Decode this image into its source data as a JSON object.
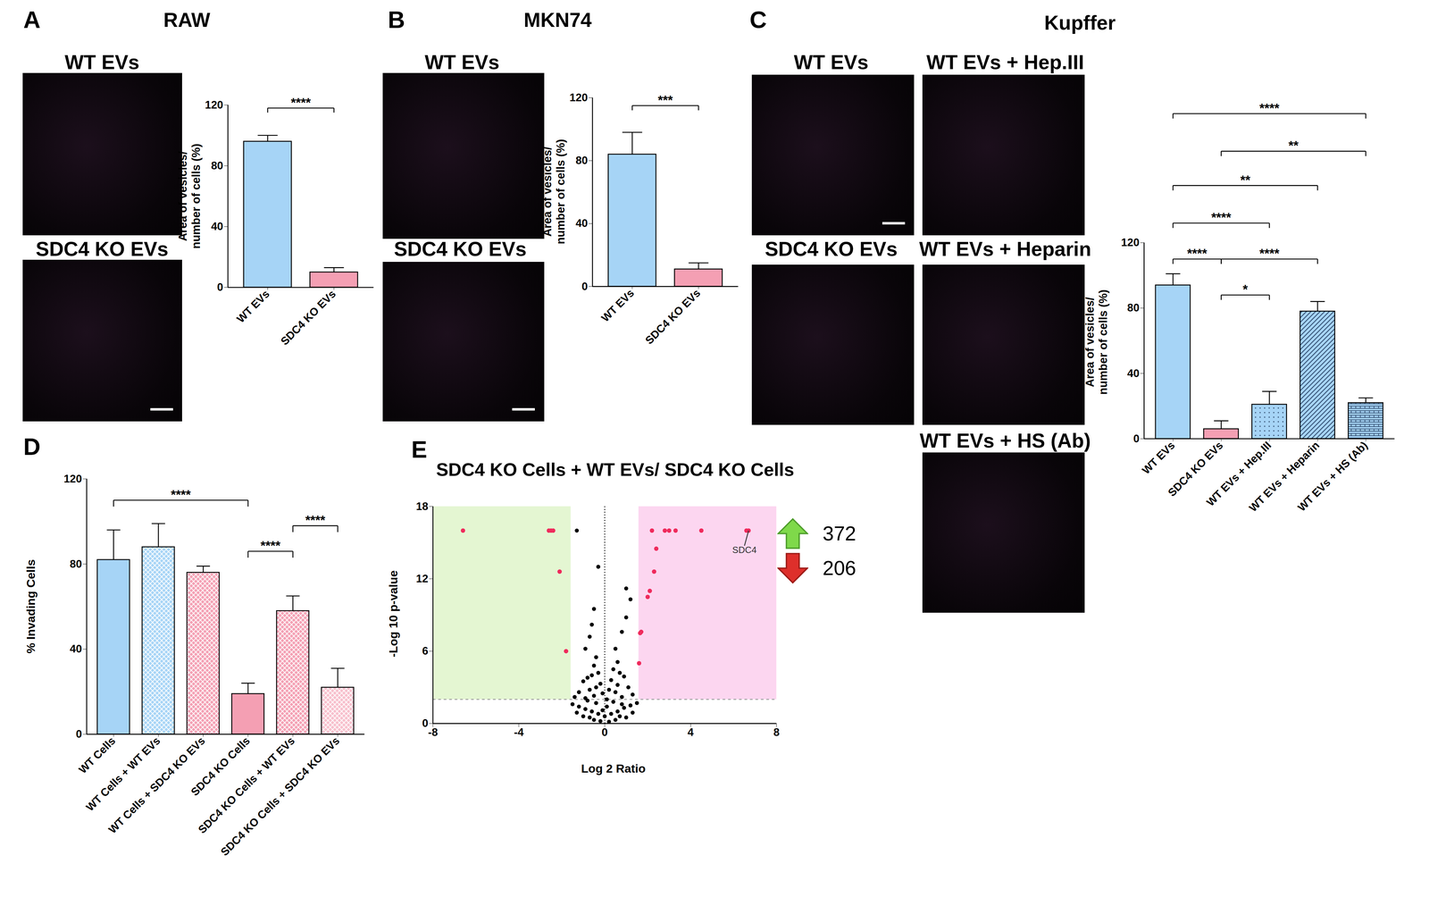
{
  "figure": {
    "panels": [
      {
        "label": "A",
        "title": "RAW",
        "images": [
          "WT EVs",
          "SDC4 KO EVs"
        ]
      },
      {
        "label": "B",
        "title": "MKN74",
        "images": [
          "WT EVs",
          "SDC4 KO EVs"
        ]
      },
      {
        "label": "C",
        "title": "Kupffer",
        "images": [
          "WT EVs",
          "WT EVs + Hep.III",
          "SDC4 KO EVs",
          "WT EVs + Heparin",
          "WT EVs + HS (Ab)"
        ]
      },
      {
        "label": "D"
      },
      {
        "label": "E"
      }
    ]
  },
  "chart_data": [
    {
      "type": "bar",
      "y_label": "Area of vesicles/ number of cells (%)",
      "categories": [
        "WT EVs",
        "SDC4 KO EVs"
      ],
      "values": [
        96,
        10
      ],
      "errors": [
        4,
        3
      ],
      "colors": [
        "#a6d4f6",
        "#f49fb3"
      ],
      "ylim": [
        0,
        120
      ],
      "yticks": [
        0,
        40,
        80,
        120
      ],
      "significance": [
        {
          "from": "WT EVs",
          "to": "SDC4 KO EVs",
          "label": "****",
          "y": 118
        }
      ]
    },
    {
      "type": "bar",
      "y_label": "Area of vesicles/ number of cells (%)",
      "categories": [
        "WT EVs",
        "SDC4 KO EVs"
      ],
      "values": [
        84,
        11
      ],
      "errors": [
        14,
        4
      ],
      "colors": [
        "#a6d4f6",
        "#f49fb3"
      ],
      "ylim": [
        0,
        120
      ],
      "yticks": [
        0,
        40,
        80,
        120
      ],
      "significance": [
        {
          "from": "WT EVs",
          "to": "SDC4 KO EVs",
          "label": "***",
          "y": 115
        }
      ]
    },
    {
      "type": "bar",
      "y_label": "Area of vesicles/ number of cells (%)",
      "categories": [
        "WT EVs",
        "SDC4 KO EVs",
        "WT EVs + Hep.III",
        "WT EVs + Heparin",
        "WT EVs + HS (Ab)"
      ],
      "values": [
        94,
        6,
        21,
        78,
        22
      ],
      "errors": [
        7,
        5,
        8,
        6,
        3
      ],
      "colors": [
        "#a6d4f6",
        "#f49fb3",
        "#a6d4f6",
        "#a6d4f6",
        "#a6d4f6"
      ],
      "ylim": [
        0,
        120
      ],
      "yticks": [
        0,
        40,
        80,
        120
      ],
      "significance": [
        {
          "from": "WT EVs",
          "to": "WT EVs + HS (Ab)",
          "label": "****",
          "y": 199
        },
        {
          "from": "SDC4 KO EVs",
          "to": "WT EVs + HS (Ab)",
          "label": "**",
          "y": 176
        },
        {
          "from": "WT EVs",
          "to": "WT EVs + Heparin",
          "label": "**",
          "y": 155
        },
        {
          "from": "WT EVs",
          "to": "WT EVs + Hep.III",
          "label": "****",
          "y": 132
        },
        {
          "from": "WT EVs",
          "to": "SDC4 KO EVs",
          "label": "****",
          "y": 110
        },
        {
          "from": "SDC4 KO EVs",
          "to": "WT EVs + Heparin",
          "label": "****",
          "y": 110
        },
        {
          "from": "SDC4 KO EVs",
          "to": "WT EVs + Hep.III",
          "label": "*",
          "y": 88
        }
      ]
    },
    {
      "type": "bar",
      "y_label": "% Invading Cells",
      "categories": [
        "WT Cells",
        "WT Cells + WT EVs",
        "WT Cells + SDC4 KO EVs",
        "SDC4 KO Cells",
        "SDC4 KO Cells + WT EVs",
        "SDC4 KO Cells + SDC4 KO EVs"
      ],
      "values": [
        82,
        88,
        76,
        19,
        58,
        22
      ],
      "errors": [
        14,
        11,
        3,
        5,
        7,
        9
      ],
      "colors": [
        "#a6d4f6",
        "#a6d4f6",
        "#f49fb3",
        "#f49fb3",
        "#f49fb3",
        "#f7bfcc"
      ],
      "ylim": [
        0,
        120
      ],
      "yticks": [
        0,
        40,
        80,
        120
      ],
      "significance": [
        {
          "from": "WT Cells",
          "to": "SDC4 KO Cells",
          "label": "****",
          "y": 110
        },
        {
          "from": "SDC4 KO Cells + WT EVs",
          "to": "SDC4 KO Cells + SDC4 KO EVs",
          "label": "****",
          "y": 98
        },
        {
          "from": "SDC4 KO Cells",
          "to": "SDC4 KO Cells + WT EVs",
          "label": "****",
          "y": 86
        }
      ]
    },
    {
      "type": "scatter",
      "title": "SDC4 KO Cells + WT EVs/ SDC4 KO Cells",
      "x_label": "Log 2 Ratio",
      "y_label": "-Log 10 p-value",
      "xlim": [
        -8,
        8
      ],
      "xticks": [
        -8,
        -4,
        0,
        4,
        8
      ],
      "ylim": [
        0,
        18
      ],
      "yticks": [
        0,
        6,
        12,
        18
      ],
      "thresholds": {
        "log2_ratio": [
          -1.58,
          1.58
        ],
        "neg_log10_p": 2,
        "center": 0
      },
      "significant": {
        "color": "#ef2b5c",
        "x": [
          -6.6,
          -2.6,
          -2.5,
          -2.4,
          -2.1,
          -1.8,
          1.6,
          1.65,
          1.7,
          2.0,
          2.1,
          2.3,
          2.4,
          2.2,
          2.8,
          3.0,
          3.3,
          4.5,
          6.6,
          6.7
        ],
        "y": [
          16,
          16,
          16,
          16,
          12.6,
          6,
          5,
          7.5,
          7.6,
          10.5,
          11,
          12.6,
          14.5,
          16,
          16,
          16,
          16,
          16,
          16,
          16
        ]
      },
      "other": {
        "color": "#000000",
        "x": [
          -1.3,
          -0.3,
          -0.5,
          -0.6,
          -0.7,
          -0.9,
          -0.4,
          -0.5,
          -0.3,
          -0.6,
          -0.8,
          -1.0,
          -0.2,
          -0.4,
          -0.7,
          -1.2,
          -0.1,
          -0.5,
          -0.9,
          -1.4,
          0.5,
          0.6,
          0.4,
          0.7,
          0.9,
          0.3,
          1.0,
          1.2,
          1.0,
          0.8,
          0.6,
          1.1,
          0.2,
          0.5,
          1.3,
          0.8,
          0.1,
          -1.5,
          -1.2,
          -0.9,
          -0.6,
          -0.3,
          0,
          0.3,
          0.6,
          0.9,
          1.2,
          1.5,
          -1.0,
          -0.5,
          -0.2,
          0.2,
          0.5,
          1.0,
          -0.7,
          0.7,
          -1.3,
          1.3,
          -0.1,
          0.1,
          -0.4,
          0.4,
          -0.8,
          0.8
        ],
        "y": [
          16,
          13,
          9.5,
          8.2,
          7.2,
          6.2,
          5.5,
          4.8,
          4.2,
          4,
          3.8,
          3.5,
          3.3,
          3,
          2.8,
          2.6,
          2.5,
          2.3,
          2.1,
          2.2,
          6.2,
          5.1,
          4.5,
          4.2,
          3.9,
          3.6,
          11.2,
          10.3,
          8.8,
          7.6,
          3.2,
          3.0,
          2.8,
          2.6,
          2.4,
          2.2,
          2.0,
          1.6,
          1.4,
          1.2,
          1.0,
          0.8,
          0.6,
          0.8,
          1.0,
          1.3,
          1.5,
          1.7,
          0.6,
          0.3,
          0.2,
          0.15,
          0.3,
          0.5,
          0.5,
          0.6,
          0.9,
          0.9,
          1.1,
          1.4,
          1.7,
          1.8,
          1.9,
          1.6
        ]
      },
      "annotations": [
        {
          "text": "SDC4",
          "x": 6.7,
          "y": 16
        }
      ],
      "counts": {
        "up": 372,
        "down": 206
      }
    }
  ]
}
